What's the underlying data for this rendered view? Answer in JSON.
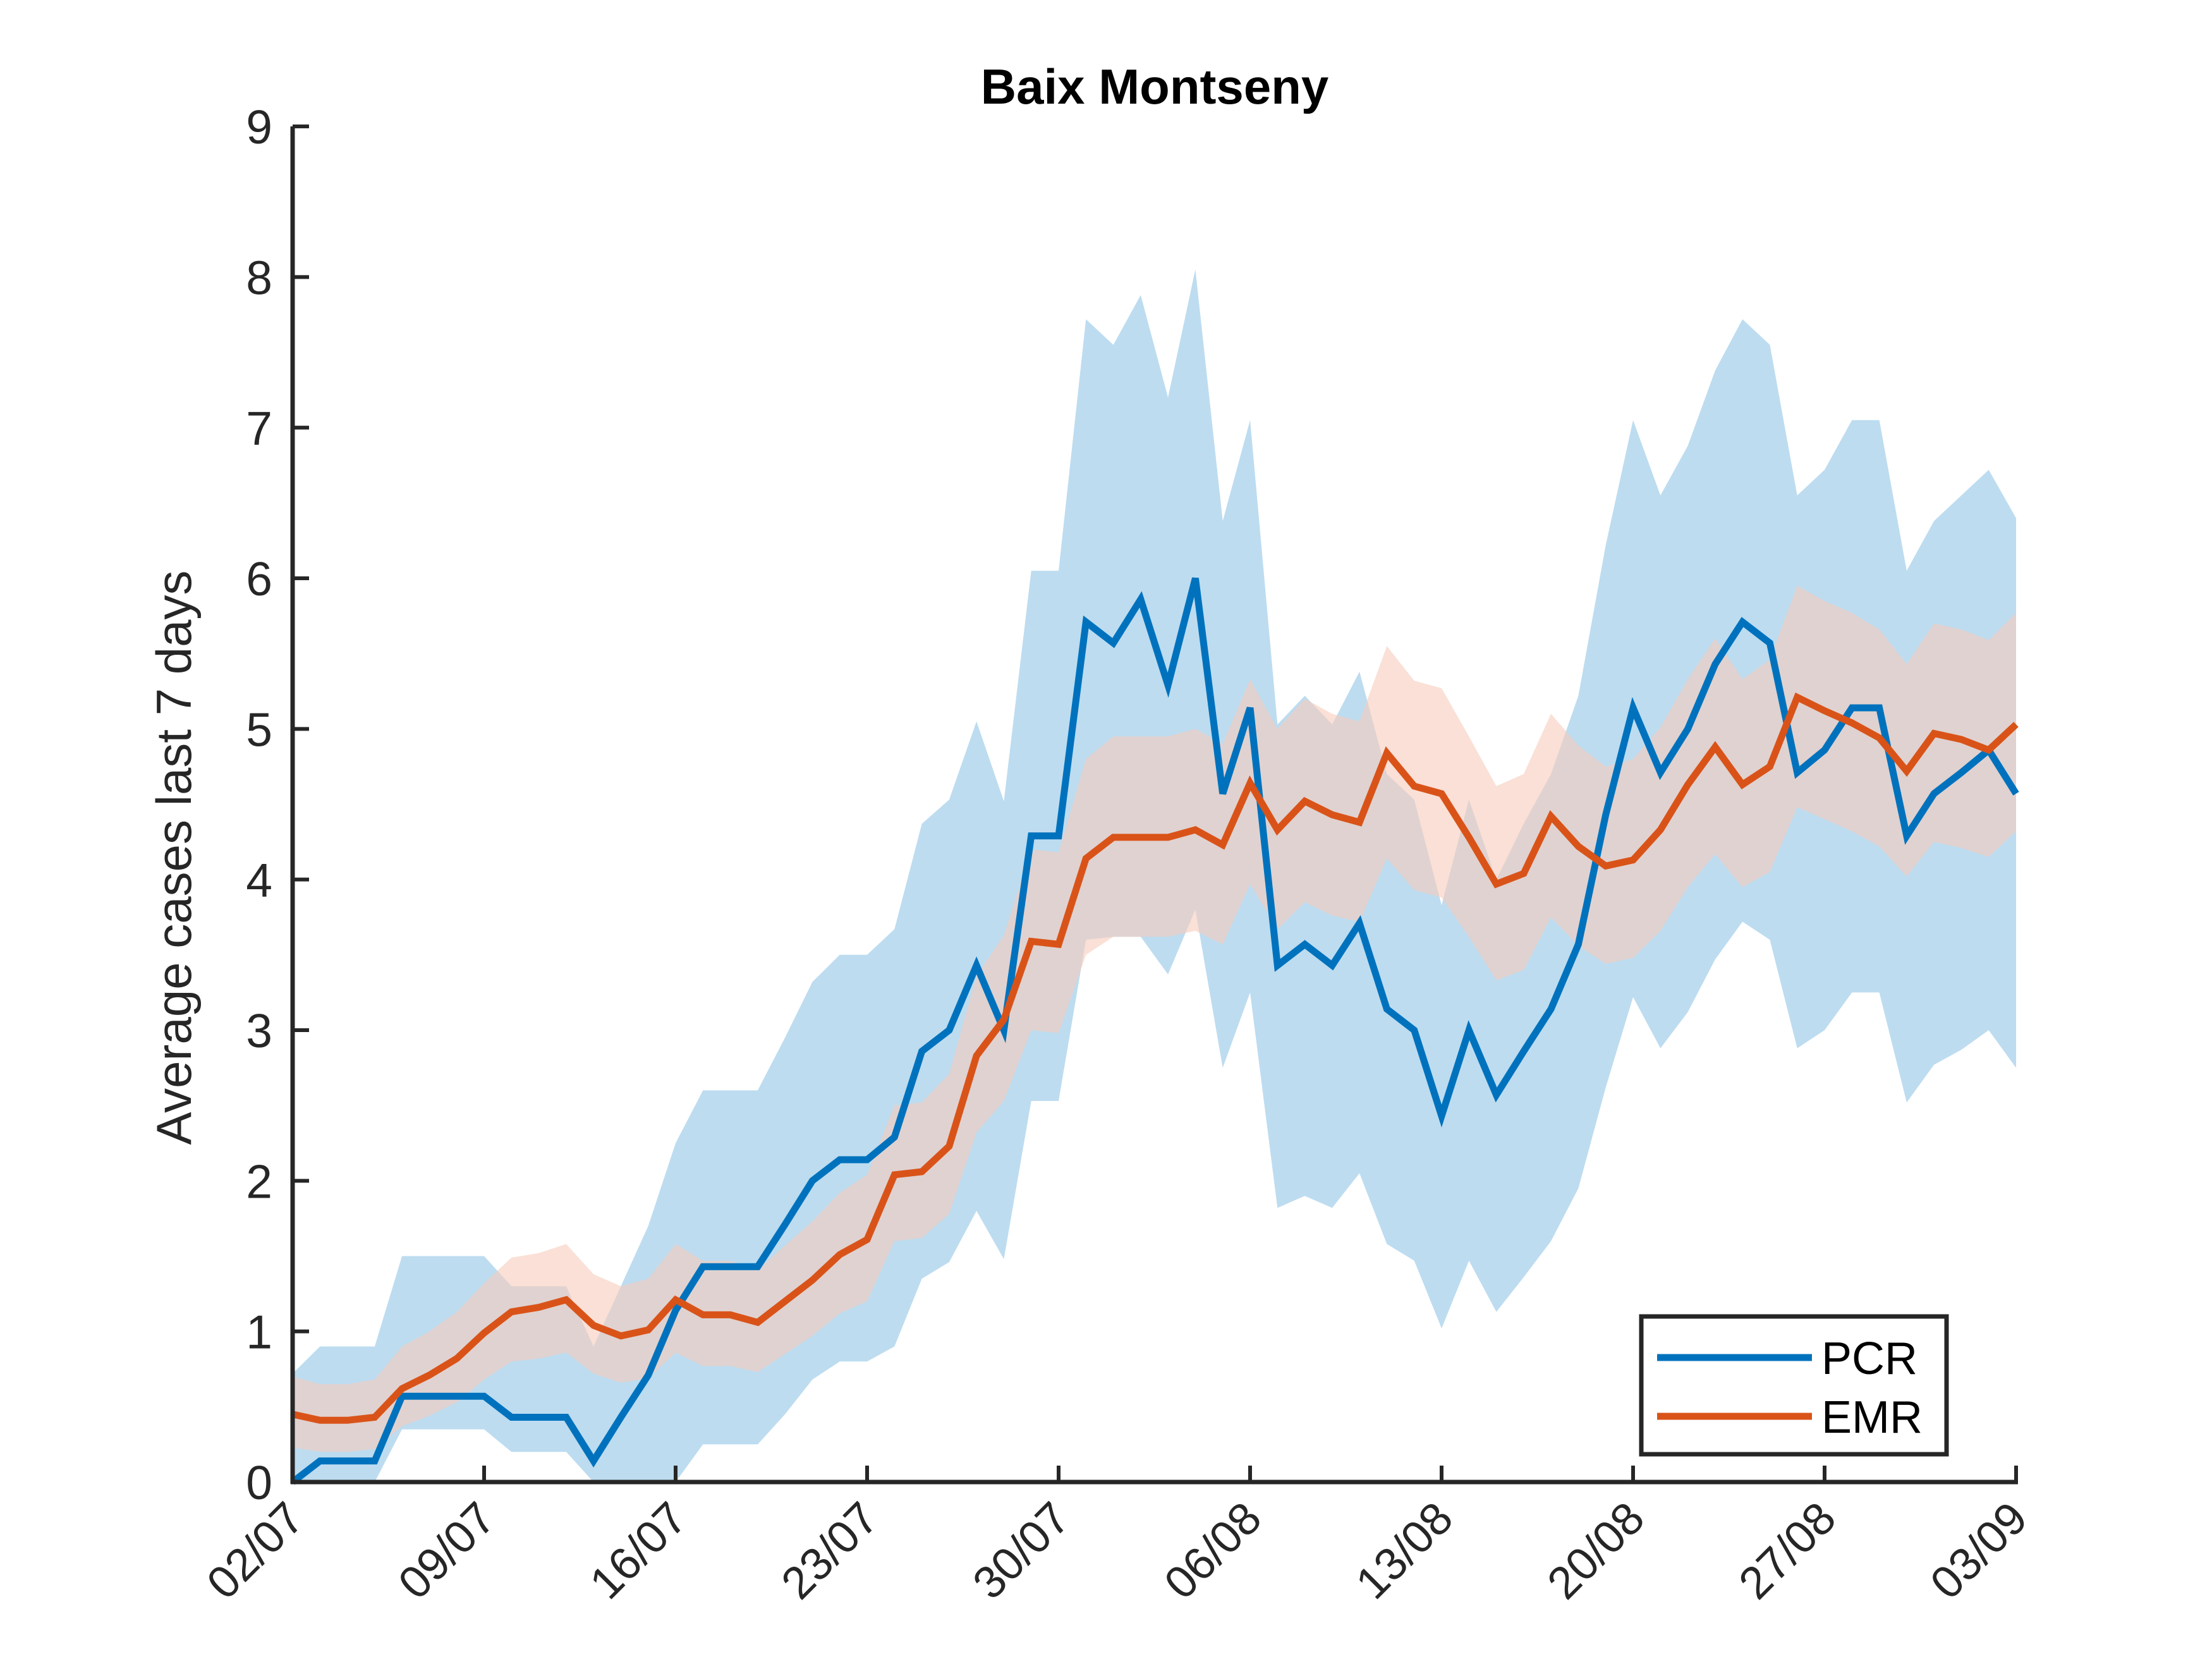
{
  "chart_data": {
    "type": "line",
    "title": "Baix Montseny",
    "xlabel": "",
    "ylabel": "Average cases last 7 days",
    "ylim": [
      0,
      9
    ],
    "xlim": [
      "02/07",
      "03/09"
    ],
    "yticks": [
      0,
      1,
      2,
      3,
      4,
      5,
      6,
      7,
      8,
      9
    ],
    "xticks": [
      "02/07",
      "09/07",
      "16/07",
      "23/07",
      "30/07",
      "06/08",
      "13/08",
      "20/08",
      "27/08",
      "03/09"
    ],
    "grid": false,
    "legend_position": "bottom-right",
    "legend": [
      "PCR",
      "EMR"
    ],
    "series": [
      {
        "name": "PCR",
        "color": "#0072BD",
        "band_color": "#BDDCF0",
        "x": [
          "02/07",
          "03/07",
          "04/07",
          "05/07",
          "06/07",
          "07/07",
          "08/07",
          "09/07",
          "10/07",
          "11/07",
          "12/07",
          "13/07",
          "14/07",
          "15/07",
          "16/07",
          "17/07",
          "18/07",
          "19/07",
          "20/07",
          "21/07",
          "22/07",
          "23/07",
          "24/07",
          "25/07",
          "26/07",
          "27/07",
          "28/07",
          "29/07",
          "30/07",
          "31/07",
          "01/08",
          "02/08",
          "03/08",
          "04/08",
          "05/08",
          "06/08",
          "07/08",
          "08/08",
          "09/08",
          "10/08",
          "11/08",
          "12/08",
          "13/08",
          "14/08",
          "15/08",
          "16/08",
          "17/08",
          "18/08",
          "19/08",
          "20/08",
          "21/08",
          "22/08",
          "23/08",
          "24/08",
          "25/08",
          "26/08",
          "27/08",
          "28/08",
          "29/08",
          "30/08",
          "31/08",
          "01/09",
          "02/09",
          "03/09"
        ],
        "values": [
          0,
          0.14,
          0.14,
          0.14,
          0.57,
          0.57,
          0.57,
          0.57,
          0.43,
          0.43,
          0.43,
          0.14,
          0.43,
          0.71,
          1.14,
          1.43,
          1.43,
          1.43,
          1.71,
          2.0,
          2.14,
          2.14,
          2.29,
          2.86,
          3.0,
          3.43,
          3.0,
          4.29,
          4.29,
          5.71,
          5.57,
          5.86,
          5.29,
          6.0,
          4.57,
          5.14,
          3.43,
          3.57,
          3.43,
          3.71,
          3.14,
          3.0,
          2.43,
          3.0,
          2.57,
          2.86,
          3.14,
          3.57,
          4.43,
          5.14,
          4.71,
          5.0,
          5.43,
          5.71,
          5.57,
          4.71,
          4.86,
          5.14,
          5.14,
          4.29,
          4.57,
          4.71,
          4.86,
          4.57
        ],
        "lower": [
          0,
          0,
          0,
          0,
          0.35,
          0.35,
          0.35,
          0.35,
          0.2,
          0.2,
          0.2,
          0,
          0,
          0,
          0,
          0.25,
          0.25,
          0.25,
          0.45,
          0.68,
          0.8,
          0.8,
          0.9,
          1.35,
          1.46,
          1.8,
          1.48,
          2.53,
          2.53,
          3.6,
          3.62,
          3.62,
          3.37,
          3.8,
          2.75,
          3.25,
          1.82,
          1.9,
          1.82,
          2.05,
          1.58,
          1.47,
          1.02,
          1.47,
          1.13,
          1.36,
          1.6,
          1.95,
          2.62,
          3.22,
          2.88,
          3.12,
          3.47,
          3.72,
          3.6,
          2.88,
          3.0,
          3.25,
          3.25,
          2.52,
          2.77,
          2.87,
          3.0,
          2.75
        ],
        "upper": [
          0.72,
          0.9,
          0.9,
          0.9,
          1.5,
          1.5,
          1.5,
          1.5,
          1.3,
          1.3,
          1.3,
          0.9,
          1.3,
          1.7,
          2.25,
          2.6,
          2.6,
          2.6,
          2.95,
          3.32,
          3.5,
          3.5,
          3.67,
          4.37,
          4.53,
          5.05,
          4.52,
          6.05,
          6.05,
          7.72,
          7.55,
          7.88,
          7.2,
          8.05,
          6.38,
          7.05,
          5.03,
          5.22,
          5.03,
          5.38,
          4.7,
          4.53,
          3.83,
          4.53,
          4.0,
          4.37,
          4.7,
          5.22,
          6.22,
          7.05,
          6.55,
          6.88,
          7.38,
          7.72,
          7.55,
          6.55,
          6.72,
          7.05,
          7.05,
          6.05,
          6.38,
          6.55,
          6.72,
          6.4
        ]
      },
      {
        "name": "EMR",
        "color": "#D95319",
        "band_color": "#F6CCBA",
        "x": [
          "02/07",
          "03/07",
          "04/07",
          "05/07",
          "06/07",
          "07/07",
          "08/07",
          "09/07",
          "10/07",
          "11/07",
          "12/07",
          "13/07",
          "14/07",
          "15/07",
          "16/07",
          "17/07",
          "18/07",
          "19/07",
          "20/07",
          "21/07",
          "22/07",
          "23/07",
          "24/07",
          "25/07",
          "26/07",
          "27/07",
          "28/07",
          "29/07",
          "30/07",
          "31/07",
          "01/08",
          "02/08",
          "03/08",
          "04/08",
          "05/08",
          "06/08",
          "07/08",
          "08/08",
          "09/08",
          "10/08",
          "11/08",
          "12/08",
          "13/08",
          "14/08",
          "15/08",
          "16/08",
          "17/08",
          "18/08",
          "19/08",
          "20/08",
          "21/08",
          "22/08",
          "23/08",
          "24/08",
          "25/08",
          "26/08",
          "27/08",
          "28/08",
          "29/08",
          "30/08",
          "31/08",
          "01/09",
          "02/09",
          "03/09"
        ],
        "values": [
          0.45,
          0.41,
          0.41,
          0.43,
          0.62,
          0.71,
          0.82,
          0.99,
          1.13,
          1.16,
          1.21,
          1.04,
          0.97,
          1.01,
          1.21,
          1.11,
          1.11,
          1.06,
          1.2,
          1.34,
          1.51,
          1.61,
          2.04,
          2.06,
          2.23,
          2.83,
          3.07,
          3.59,
          3.57,
          4.14,
          4.28,
          4.28,
          4.28,
          4.33,
          4.23,
          4.64,
          4.33,
          4.52,
          4.43,
          4.38,
          4.84,
          4.62,
          4.57,
          4.28,
          3.97,
          4.04,
          4.42,
          4.22,
          4.09,
          4.13,
          4.33,
          4.63,
          4.88,
          4.63,
          4.75,
          5.21,
          5.12,
          5.04,
          4.94,
          4.72,
          4.97,
          4.93,
          4.86,
          5.03
        ],
        "lower": [
          0.23,
          0.2,
          0.2,
          0.22,
          0.37,
          0.44,
          0.53,
          0.68,
          0.8,
          0.82,
          0.86,
          0.72,
          0.66,
          0.69,
          0.86,
          0.77,
          0.77,
          0.73,
          0.85,
          0.97,
          1.12,
          1.2,
          1.6,
          1.62,
          1.78,
          2.32,
          2.53,
          3.0,
          2.98,
          3.5,
          3.62,
          3.62,
          3.62,
          3.66,
          3.57,
          3.97,
          3.67,
          3.85,
          3.76,
          3.72,
          4.14,
          3.93,
          3.88,
          3.62,
          3.33,
          3.4,
          3.75,
          3.56,
          3.44,
          3.48,
          3.66,
          3.95,
          4.17,
          3.95,
          4.05,
          4.48,
          4.4,
          4.32,
          4.22,
          4.02,
          4.25,
          4.21,
          4.15,
          4.32
        ],
        "upper": [
          0.7,
          0.65,
          0.65,
          0.68,
          0.9,
          1.0,
          1.13,
          1.32,
          1.49,
          1.52,
          1.58,
          1.38,
          1.3,
          1.35,
          1.58,
          1.47,
          1.47,
          1.41,
          1.57,
          1.73,
          1.92,
          2.04,
          2.5,
          2.52,
          2.71,
          3.36,
          3.63,
          4.2,
          4.18,
          4.8,
          4.95,
          4.95,
          4.95,
          5.0,
          4.9,
          5.33,
          5.0,
          5.2,
          5.1,
          5.05,
          5.55,
          5.32,
          5.27,
          4.95,
          4.62,
          4.7,
          5.1,
          4.89,
          4.75,
          4.8,
          5.01,
          5.33,
          5.6,
          5.33,
          5.46,
          5.95,
          5.85,
          5.77,
          5.66,
          5.43,
          5.7,
          5.66,
          5.59,
          5.77
        ]
      }
    ]
  }
}
